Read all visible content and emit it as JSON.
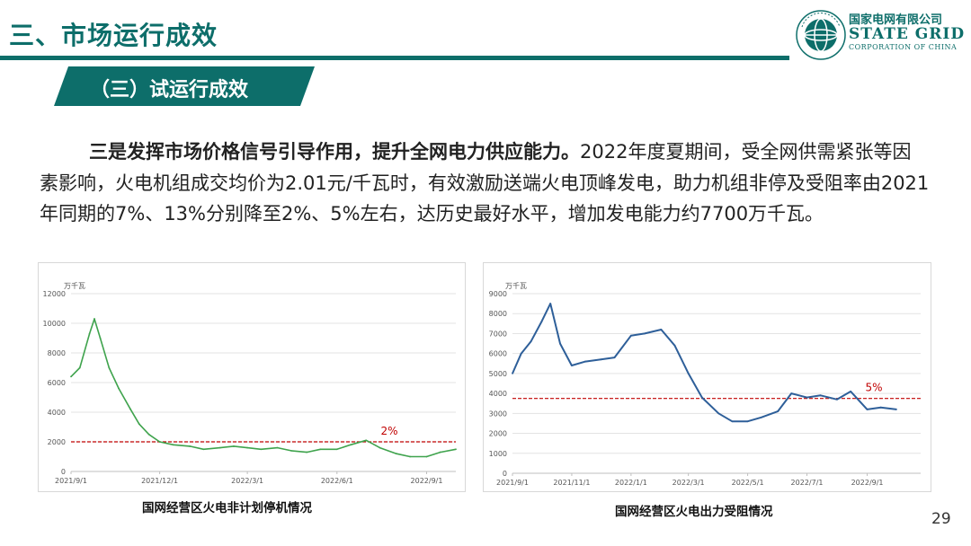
{
  "header": {
    "title": "三、市场运行成效",
    "logo_cn": "国家电网有限公司",
    "logo_en": "STATE GRID",
    "logo_sub": "CORPORATION OF CHINA",
    "brand_color": "#0d6e6a"
  },
  "section": {
    "subtitle": "（三）试运行成效"
  },
  "body": {
    "lead_bold": "三是发挥市场价格信号引导作用，提升全网电力供应能力。",
    "text": "2022年度夏期间，受全网供需紧张等因素影响，火电机组成交均价为2.01元/千瓦时，有效激励送端火电顶峰发电，助力机组非停及受阻率由2021年同期的7%、13%分别降至2%、5%左右，达历史最好水平，增加发电能力约7700万千瓦。"
  },
  "chart_data": [
    {
      "type": "line",
      "caption": "国网经营区火电非计划停机情况",
      "unit_label": "万千瓦",
      "ylim": [
        0,
        12000
      ],
      "yticks": [
        "0",
        "2000",
        "4000",
        "6000",
        "8000",
        "10000",
        "12000"
      ],
      "xticks": [
        "2021/9/1",
        "2021/12/1",
        "2022/3/1",
        "2022/6/1",
        "2022/9/1"
      ],
      "grid": true,
      "line_color": "#3fa34d",
      "ref_line": {
        "value": 2000,
        "label": "2%",
        "color": "#c00000"
      },
      "x": [
        "2021/9/1",
        "2021/9/10",
        "2021/9/20",
        "2021/9/25",
        "2021/10/1",
        "2021/10/10",
        "2021/10/20",
        "2021/11/1",
        "2021/11/10",
        "2021/11/20",
        "2021/12/1",
        "2021/12/15",
        "2022/1/1",
        "2022/1/15",
        "2022/2/1",
        "2022/2/15",
        "2022/3/1",
        "2022/3/15",
        "2022/4/1",
        "2022/4/15",
        "2022/5/1",
        "2022/5/15",
        "2022/6/1",
        "2022/6/15",
        "2022/7/1",
        "2022/7/15",
        "2022/8/1",
        "2022/8/15",
        "2022/9/1",
        "2022/9/15",
        "2022/10/1"
      ],
      "values": [
        6400,
        7000,
        9300,
        10300,
        9000,
        7000,
        5600,
        4200,
        3200,
        2500,
        2000,
        1800,
        1700,
        1500,
        1600,
        1700,
        1600,
        1500,
        1600,
        1400,
        1300,
        1500,
        1500,
        1800,
        2100,
        1600,
        1200,
        1000,
        1000,
        1300,
        1500
      ]
    },
    {
      "type": "line",
      "caption": "国网经营区火电出力受阻情况",
      "unit_label": "万千瓦",
      "ylim": [
        0,
        9000
      ],
      "yticks": [
        "0",
        "1000",
        "2000",
        "3000",
        "4000",
        "5000",
        "6000",
        "7000",
        "8000",
        "9000"
      ],
      "xticks": [
        "2021/9/1",
        "2021/11/1",
        "2022/1/1",
        "2022/3/1",
        "2022/5/1",
        "2022/7/1",
        "2022/9/1"
      ],
      "grid": true,
      "line_color": "#2e5f99",
      "ref_line": {
        "value": 3750,
        "label": "5%",
        "color": "#c00000"
      },
      "x": [
        "2021/9/1",
        "2021/9/10",
        "2021/9/20",
        "2021/10/1",
        "2021/10/10",
        "2021/10/20",
        "2021/11/1",
        "2021/11/15",
        "2021/12/1",
        "2021/12/15",
        "2022/1/1",
        "2022/1/15",
        "2022/2/1",
        "2022/2/15",
        "2022/3/1",
        "2022/3/15",
        "2022/4/1",
        "2022/4/15",
        "2022/5/1",
        "2022/5/15",
        "2022/6/1",
        "2022/6/15",
        "2022/7/1",
        "2022/7/15",
        "2022/8/1",
        "2022/8/15",
        "2022/9/1",
        "2022/9/15",
        "2022/10/1"
      ],
      "values": [
        5000,
        6000,
        6600,
        7600,
        8500,
        6500,
        5400,
        5600,
        5700,
        5800,
        6900,
        7000,
        7200,
        6400,
        5000,
        3800,
        3000,
        2600,
        2600,
        2800,
        3100,
        4000,
        3800,
        3900,
        3700,
        4100,
        3200,
        3300,
        3200
      ]
    }
  ],
  "page_number": "29"
}
